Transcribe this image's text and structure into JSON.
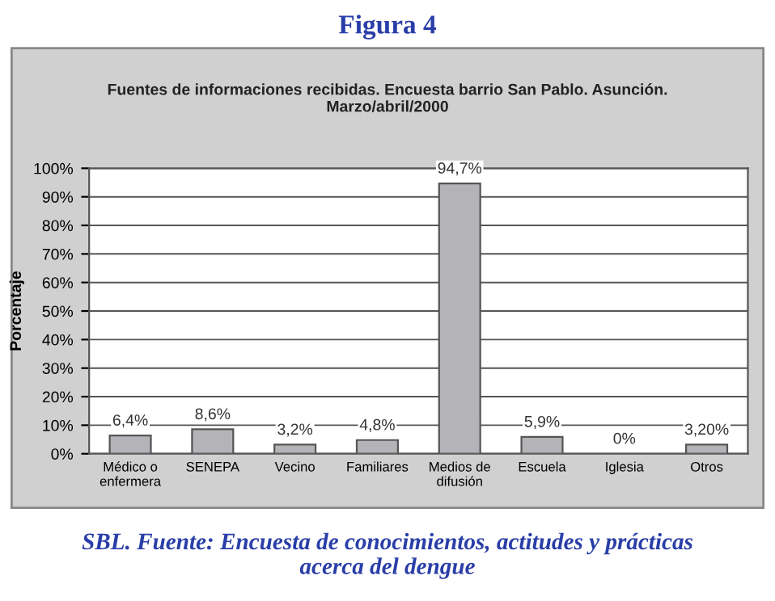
{
  "chart_data": {
    "type": "bar",
    "title": "Figura 4",
    "subtitle": "Fuentes de informaciones recibidas. Encuesta barrio San Pablo. Asunción.\nMarzo/abril/2000",
    "ylabel": "Porcentaje",
    "categories": [
      "Médico o\nenfermera",
      "SENEPA",
      "Vecino",
      "Familiares",
      "Medios de\ndifusión",
      "Escuela",
      "Iglesia",
      "Otros"
    ],
    "values": [
      6.4,
      8.6,
      3.2,
      4.8,
      94.7,
      5.9,
      0,
      3.2
    ],
    "value_labels": [
      "6,4%",
      "8,6%",
      "3,2%",
      "4,8%",
      "94,7%",
      "5,9%",
      "0%",
      "3,20%"
    ],
    "color": "#b4b4b8",
    "ylim": [
      0,
      100
    ],
    "yticks": [
      {
        "value": 0,
        "label": "0%"
      },
      {
        "value": 10,
        "label": "10%"
      },
      {
        "value": 20,
        "label": "20%"
      },
      {
        "value": 30,
        "label": "30%"
      },
      {
        "value": 40,
        "label": "40%"
      },
      {
        "value": 50,
        "label": "50%"
      },
      {
        "value": 60,
        "label": "60%"
      },
      {
        "value": 70,
        "label": "70%"
      },
      {
        "value": 80,
        "label": "80%"
      },
      {
        "value": 90,
        "label": "90%"
      },
      {
        "value": 100,
        "label": "100%"
      }
    ],
    "grid": "y",
    "legend": false,
    "annotations": [
      "SBL. Fuente: Encuesta de conocimientos, actitudes y prácticas\nacerca del dengue"
    ]
  }
}
